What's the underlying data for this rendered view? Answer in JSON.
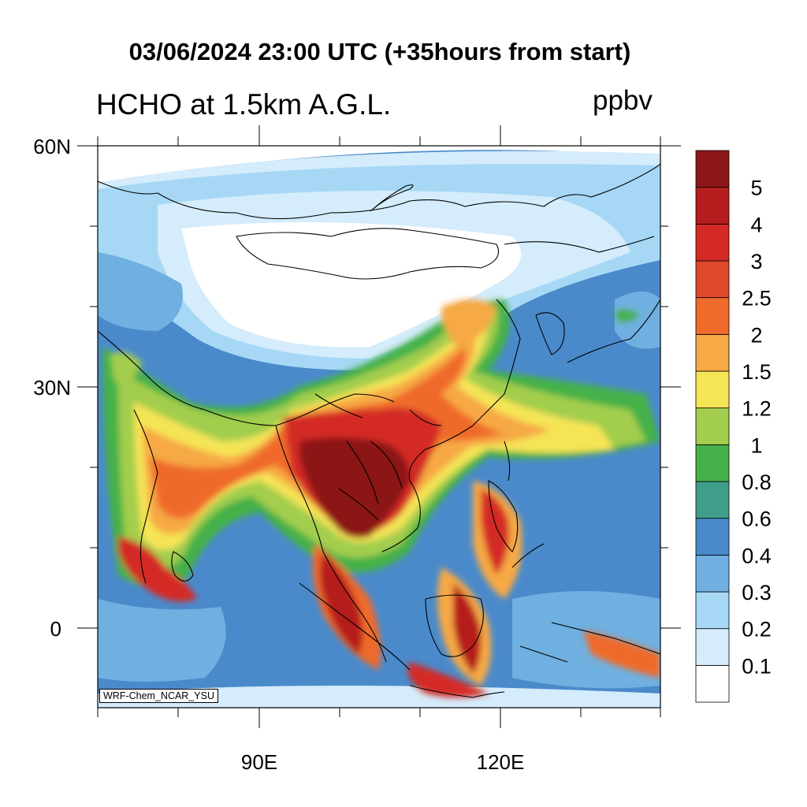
{
  "title": "03/06/2024 23:00 UTC (+35hours from start)",
  "subtitle": "HCHO at 1.5km A.G.L.",
  "units": "ppbv",
  "watermark": "WRF-Chem_NCAR_YSU",
  "axes": {
    "lat_labels": [
      "60N",
      "30N",
      "0"
    ],
    "lon_labels": [
      "90E",
      "120E"
    ]
  },
  "colorbar": {
    "levels": [
      "0.1",
      "0.2",
      "0.3",
      "0.4",
      "0.6",
      "0.8",
      "1",
      "1.2",
      "1.5",
      "2",
      "2.5",
      "3",
      "4",
      "5"
    ],
    "colors": [
      "#ffffff",
      "#d4ecfb",
      "#a6d8f5",
      "#6fb0e0",
      "#4a8acb",
      "#3f9e8a",
      "#45b14a",
      "#a3cd4e",
      "#f5e456",
      "#f6a945",
      "#ef6a2b",
      "#e04a2b",
      "#d42a26",
      "#b51d1f",
      "#8c1618"
    ]
  }
}
